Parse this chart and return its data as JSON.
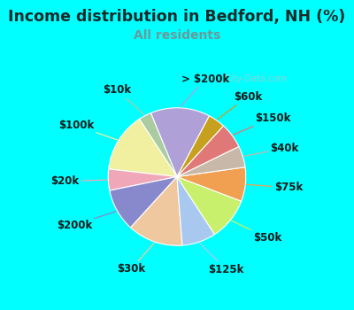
{
  "title": "Income distribution in Bedford, NH (%)",
  "subtitle": "All residents",
  "background_outer": "#00FFFF",
  "background_inner_gradient_top": "#e8f5ef",
  "background_inner_solid": "#dff0e8",
  "title_color": "#1a2a2a",
  "subtitle_color": "#6a9a9a",
  "labels": [
    "> $200k",
    "$10k",
    "$100k",
    "$20k",
    "$200k",
    "$30k",
    "$125k",
    "$50k",
    "$75k",
    "$40k",
    "$150k",
    "$60k"
  ],
  "values": [
    14,
    3,
    14,
    5,
    10,
    13,
    8,
    10,
    8,
    5,
    6,
    4
  ],
  "colors": [
    "#b0a0d8",
    "#aacca0",
    "#f0f0a0",
    "#f0a8b8",
    "#8888cc",
    "#f0c8a0",
    "#a8c8f0",
    "#c8f06c",
    "#f0a050",
    "#c8b8a8",
    "#e07878",
    "#c8a020"
  ],
  "startangle": 62,
  "label_fontsize": 8.5,
  "title_fontsize": 12.5,
  "subtitle_fontsize": 10
}
